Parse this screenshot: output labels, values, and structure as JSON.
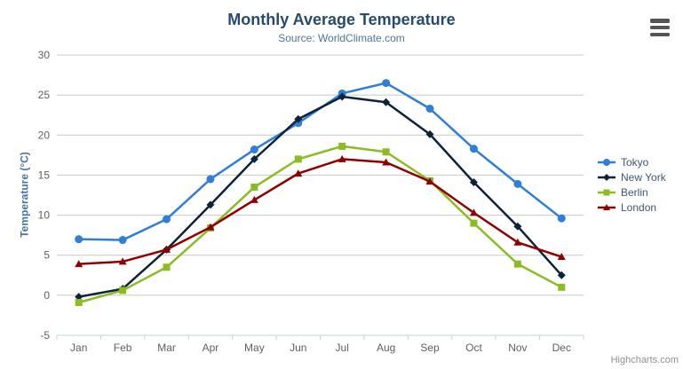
{
  "header": {
    "title": "Monthly Average Temperature",
    "subtitle": "Source: WorldClimate.com"
  },
  "credits": {
    "label": "Highcharts.com"
  },
  "chart_data": {
    "type": "line",
    "title": "Monthly Average Temperature",
    "subtitle": "Source: WorldClimate.com",
    "categories": [
      "Jan",
      "Feb",
      "Mar",
      "Apr",
      "May",
      "Jun",
      "Jul",
      "Aug",
      "Sep",
      "Oct",
      "Nov",
      "Dec"
    ],
    "xlabel": "",
    "ylabel": "Temperature (°C)",
    "ylim": [
      -5,
      30
    ],
    "yticks": [
      -5,
      0,
      5,
      10,
      15,
      20,
      25,
      30
    ],
    "grid": true,
    "legend_position": "right-middle",
    "series": [
      {
        "name": "Tokyo",
        "color": "#2f7ed8",
        "symbol": "circle",
        "values": [
          7.0,
          6.9,
          9.5,
          14.5,
          18.2,
          21.5,
          25.2,
          26.5,
          23.3,
          18.3,
          13.9,
          9.6
        ]
      },
      {
        "name": "New York",
        "color": "#0d233a",
        "symbol": "diamond",
        "values": [
          -0.2,
          0.8,
          5.7,
          11.3,
          17.0,
          22.0,
          24.8,
          24.1,
          20.1,
          14.1,
          8.6,
          2.5
        ]
      },
      {
        "name": "Berlin",
        "color": "#8bbc21",
        "symbol": "square",
        "values": [
          -0.9,
          0.6,
          3.5,
          8.4,
          13.5,
          17.0,
          18.6,
          17.9,
          14.3,
          9.0,
          3.9,
          1.0
        ]
      },
      {
        "name": "London",
        "color": "#910000",
        "symbol": "triangle",
        "values": [
          3.9,
          4.2,
          5.7,
          8.5,
          11.9,
          15.2,
          17.0,
          16.6,
          14.2,
          10.3,
          6.6,
          4.8
        ]
      }
    ],
    "colors": {
      "title": "#274b6d",
      "subtitle": "#4d759e",
      "axis_labels": "#606060",
      "grid": "#c8c8c8",
      "axis_line": "#c0d0e0",
      "y_title": "#4572a7",
      "legend_text": "#3e576f",
      "credits": "#909090",
      "menu_icon": "#555555",
      "background": "#ffffff"
    }
  }
}
